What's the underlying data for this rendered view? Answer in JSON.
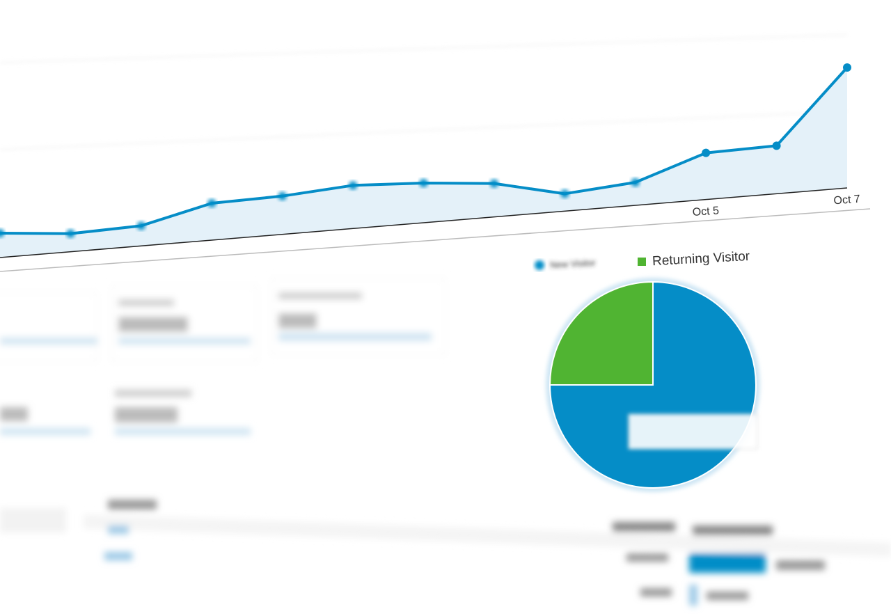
{
  "chart_data": [
    {
      "type": "line",
      "categories": [
        null,
        null,
        null,
        null,
        null,
        null,
        null,
        null,
        null,
        null,
        "Oct 5",
        null,
        "Oct 7"
      ],
      "values": [
        35,
        26,
        29,
        53,
        55,
        62,
        57,
        48,
        25,
        33,
        67,
        69,
        173
      ],
      "color": "#058dc7",
      "area_color": "#e4f1f9",
      "ylim": [
        0,
        200
      ]
    },
    {
      "type": "pie",
      "categories": [
        "New Visitor",
        "Returning Visitor"
      ],
      "values": [
        75,
        25
      ],
      "colors": [
        "#058dc7",
        "#50b432"
      ]
    }
  ]
}
